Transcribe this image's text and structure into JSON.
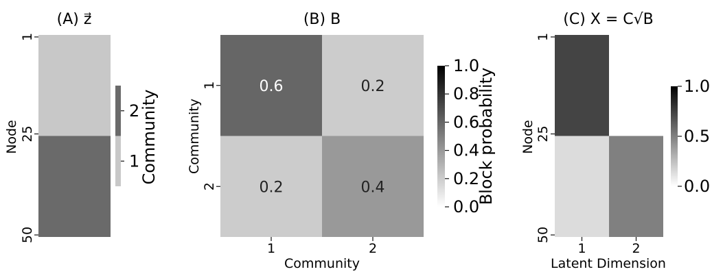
{
  "chart_data": [
    {
      "type": "heatmap",
      "panel": "A",
      "title": "(A) z⃗",
      "xlabel": "",
      "ylabel": "Node",
      "rows": 50,
      "y_tick_labels": [
        "1",
        "25",
        "50"
      ],
      "row_values": [
        {
          "from": 1,
          "to": 25,
          "value": 1
        },
        {
          "from": 26,
          "to": 50,
          "value": 2
        }
      ],
      "colorbar": {
        "label": "Community",
        "ticks": [
          "1",
          "2"
        ],
        "categories": [
          1,
          2
        ],
        "colors": [
          "#c8c8c8",
          "#6a6a6a"
        ]
      }
    },
    {
      "type": "heatmap",
      "panel": "B",
      "title": "(B) B",
      "xlabel": "Community",
      "ylabel": "Community",
      "x_tick_labels": [
        "1",
        "2"
      ],
      "y_tick_labels": [
        "1",
        "2"
      ],
      "values": [
        [
          0.6,
          0.2
        ],
        [
          0.2,
          0.4
        ]
      ],
      "annotations": [
        [
          "0.6",
          "0.2"
        ],
        [
          "0.2",
          "0.4"
        ]
      ],
      "vmin": 0,
      "vmax": 1,
      "colorbar": {
        "label": "Block probability",
        "ticks": [
          "0.0",
          "0.2",
          "0.4",
          "0.6",
          "0.8",
          "1.0"
        ]
      }
    },
    {
      "type": "heatmap",
      "panel": "C",
      "title": "(C) X = C√B",
      "xlabel": "Latent Dimension",
      "ylabel": "Node",
      "rows": 50,
      "x_tick_labels": [
        "1",
        "2"
      ],
      "y_tick_labels": [
        "1",
        "25",
        "50"
      ],
      "row_values": [
        {
          "from": 1,
          "to": 25,
          "value": [
            0.77,
            0.0
          ]
        },
        {
          "from": 26,
          "to": 50,
          "value": [
            0.0,
            0.63
          ]
        }
      ],
      "display_colors": [
        [
          "#444444",
          "#ffffff"
        ],
        [
          "#dcdcdc",
          "#808080"
        ]
      ],
      "vmin": 0,
      "vmax": 1,
      "colorbar": {
        "label": "",
        "ticks": [
          "0.0",
          "0.5",
          "1.0"
        ]
      }
    }
  ]
}
